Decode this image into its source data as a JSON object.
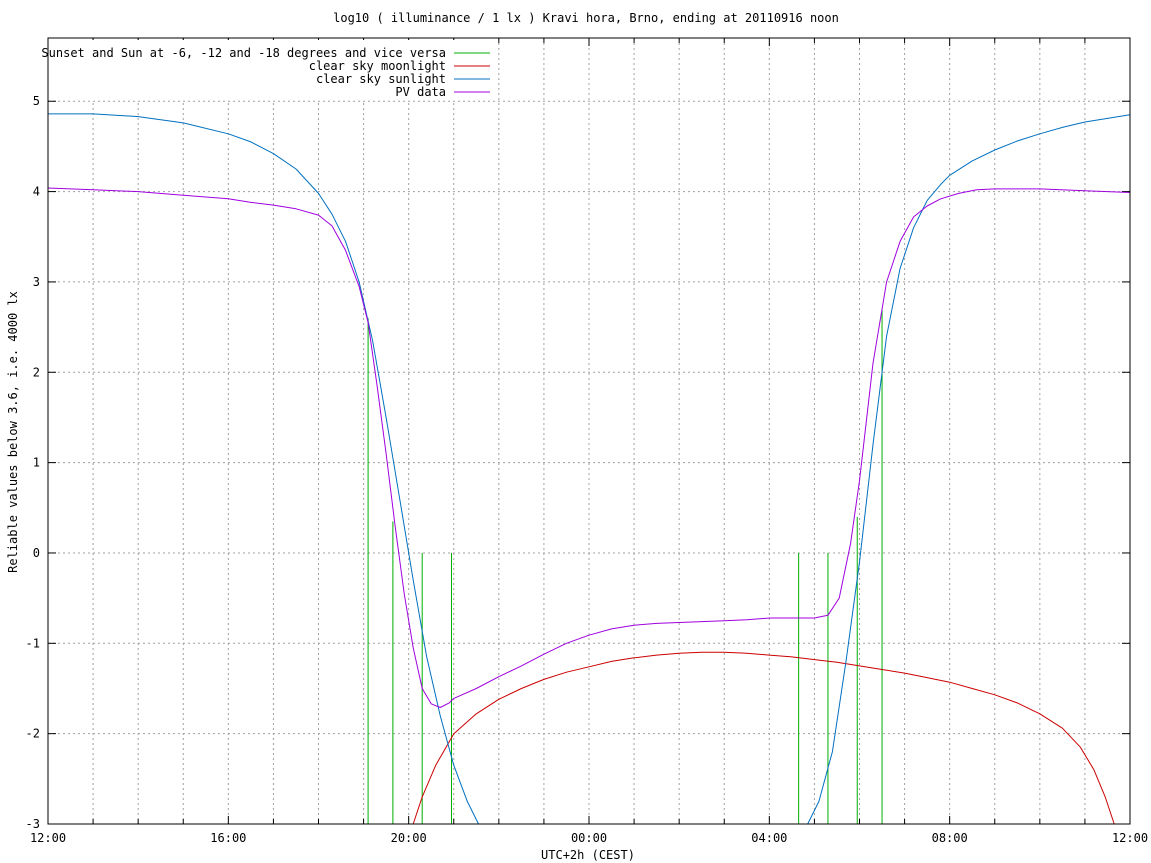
{
  "chart_data": {
    "type": "line",
    "title": "log10 ( illuminance / 1 lx ) Kravi hora, Brno, ending at 20110916 noon",
    "xlabel": "UTC+2h (CEST)",
    "ylabel": "Reliable values below 3.6, i.e. 4000 lx",
    "xlim": [
      0,
      24
    ],
    "ylim": [
      -3,
      5.7
    ],
    "x_ticks": [
      {
        "value": 0,
        "label": "12:00"
      },
      {
        "value": 4,
        "label": "16:00"
      },
      {
        "value": 8,
        "label": "20:00"
      },
      {
        "value": 12,
        "label": "00:00"
      },
      {
        "value": 16,
        "label": "04:00"
      },
      {
        "value": 20,
        "label": "08:00"
      },
      {
        "value": 24,
        "label": "12:00"
      }
    ],
    "y_ticks": [
      {
        "value": -3,
        "label": "-3"
      },
      {
        "value": -2,
        "label": "-2"
      },
      {
        "value": -1,
        "label": "-1"
      },
      {
        "value": 0,
        "label": "0"
      },
      {
        "value": 1,
        "label": "1"
      },
      {
        "value": 2,
        "label": "2"
      },
      {
        "value": 3,
        "label": "3"
      },
      {
        "value": 4,
        "label": "4"
      },
      {
        "value": 5,
        "label": "5"
      }
    ],
    "grid": true,
    "legend_position": "top-left",
    "series": [
      {
        "name": "Sunset and Sun at -6, -12 and -18 degrees and vice versa",
        "color": "#00b000",
        "kind": "impulses",
        "points": [
          [
            7.1,
            2.6
          ],
          [
            7.65,
            0.35
          ],
          [
            8.3,
            0
          ],
          [
            8.95,
            0
          ],
          [
            16.65,
            0
          ],
          [
            17.3,
            0
          ],
          [
            17.95,
            0.4
          ],
          [
            18.5,
            2.7
          ]
        ]
      },
      {
        "name": "clear sky moonlight",
        "color": "#cc0000",
        "kind": "line",
        "points": [
          [
            8.1,
            -3.0
          ],
          [
            8.3,
            -2.7
          ],
          [
            8.6,
            -2.35
          ],
          [
            9.0,
            -2.0
          ],
          [
            9.5,
            -1.78
          ],
          [
            10.0,
            -1.62
          ],
          [
            10.5,
            -1.5
          ],
          [
            11.0,
            -1.4
          ],
          [
            11.5,
            -1.32
          ],
          [
            12.0,
            -1.26
          ],
          [
            12.5,
            -1.2
          ],
          [
            13.0,
            -1.16
          ],
          [
            13.5,
            -1.13
          ],
          [
            14.0,
            -1.11
          ],
          [
            14.5,
            -1.1
          ],
          [
            15.0,
            -1.1
          ],
          [
            15.5,
            -1.11
          ],
          [
            16.0,
            -1.13
          ],
          [
            16.5,
            -1.15
          ],
          [
            17.0,
            -1.18
          ],
          [
            17.5,
            -1.21
          ],
          [
            18.0,
            -1.25
          ],
          [
            18.5,
            -1.29
          ],
          [
            19.0,
            -1.33
          ],
          [
            19.5,
            -1.38
          ],
          [
            20.0,
            -1.43
          ],
          [
            20.5,
            -1.5
          ],
          [
            21.0,
            -1.57
          ],
          [
            21.5,
            -1.66
          ],
          [
            22.0,
            -1.78
          ],
          [
            22.5,
            -1.94
          ],
          [
            22.9,
            -2.15
          ],
          [
            23.2,
            -2.4
          ],
          [
            23.45,
            -2.7
          ],
          [
            23.65,
            -3.0
          ]
        ]
      },
      {
        "name": "clear sky sunlight",
        "color": "#0070c0",
        "kind": "line",
        "points": [
          [
            0.0,
            4.86
          ],
          [
            1.0,
            4.86
          ],
          [
            2.0,
            4.83
          ],
          [
            3.0,
            4.76
          ],
          [
            4.0,
            4.64
          ],
          [
            4.5,
            4.55
          ],
          [
            5.0,
            4.42
          ],
          [
            5.5,
            4.25
          ],
          [
            6.0,
            3.98
          ],
          [
            6.3,
            3.75
          ],
          [
            6.6,
            3.45
          ],
          [
            6.9,
            3.0
          ],
          [
            7.2,
            2.35
          ],
          [
            7.5,
            1.5
          ],
          [
            7.8,
            0.6
          ],
          [
            8.1,
            -0.3
          ],
          [
            8.4,
            -1.15
          ],
          [
            8.7,
            -1.8
          ],
          [
            9.0,
            -2.35
          ],
          [
            9.3,
            -2.75
          ],
          [
            9.55,
            -3.0
          ],
          [
            16.85,
            -3.0
          ],
          [
            17.1,
            -2.75
          ],
          [
            17.4,
            -2.2
          ],
          [
            17.7,
            -1.2
          ],
          [
            18.0,
            -0.1
          ],
          [
            18.3,
            1.2
          ],
          [
            18.6,
            2.4
          ],
          [
            18.9,
            3.15
          ],
          [
            19.2,
            3.6
          ],
          [
            19.5,
            3.9
          ],
          [
            19.8,
            4.08
          ],
          [
            20.0,
            4.18
          ],
          [
            20.5,
            4.34
          ],
          [
            21.0,
            4.46
          ],
          [
            21.5,
            4.56
          ],
          [
            22.0,
            4.64
          ],
          [
            22.5,
            4.71
          ],
          [
            23.0,
            4.77
          ],
          [
            23.5,
            4.81
          ],
          [
            24.0,
            4.85
          ]
        ]
      },
      {
        "name": "PV data",
        "color": "#a000e0",
        "kind": "line",
        "points": [
          [
            0.0,
            4.04
          ],
          [
            1.0,
            4.02
          ],
          [
            2.0,
            4.0
          ],
          [
            3.0,
            3.96
          ],
          [
            4.0,
            3.92
          ],
          [
            4.5,
            3.88
          ],
          [
            5.0,
            3.85
          ],
          [
            5.5,
            3.81
          ],
          [
            6.0,
            3.74
          ],
          [
            6.3,
            3.62
          ],
          [
            6.6,
            3.35
          ],
          [
            6.9,
            2.95
          ],
          [
            7.1,
            2.55
          ],
          [
            7.3,
            1.85
          ],
          [
            7.5,
            1.1
          ],
          [
            7.7,
            0.3
          ],
          [
            7.9,
            -0.45
          ],
          [
            8.1,
            -1.05
          ],
          [
            8.3,
            -1.5
          ],
          [
            8.5,
            -1.67
          ],
          [
            8.7,
            -1.71
          ],
          [
            8.9,
            -1.66
          ],
          [
            9.0,
            -1.61
          ],
          [
            9.5,
            -1.5
          ],
          [
            10.0,
            -1.37
          ],
          [
            10.5,
            -1.25
          ],
          [
            11.0,
            -1.12
          ],
          [
            11.5,
            -1.0
          ],
          [
            12.0,
            -0.91
          ],
          [
            12.5,
            -0.84
          ],
          [
            13.0,
            -0.8
          ],
          [
            13.5,
            -0.78
          ],
          [
            14.0,
            -0.77
          ],
          [
            14.5,
            -0.76
          ],
          [
            15.0,
            -0.75
          ],
          [
            15.5,
            -0.74
          ],
          [
            16.0,
            -0.72
          ],
          [
            16.5,
            -0.72
          ],
          [
            17.0,
            -0.72
          ],
          [
            17.3,
            -0.69
          ],
          [
            17.55,
            -0.5
          ],
          [
            17.8,
            0.1
          ],
          [
            18.0,
            0.8
          ],
          [
            18.3,
            2.1
          ],
          [
            18.6,
            3.0
          ],
          [
            18.9,
            3.45
          ],
          [
            19.2,
            3.72
          ],
          [
            19.5,
            3.84
          ],
          [
            19.8,
            3.92
          ],
          [
            20.2,
            3.98
          ],
          [
            20.6,
            4.02
          ],
          [
            21.0,
            4.03
          ],
          [
            22.0,
            4.03
          ],
          [
            23.0,
            4.01
          ],
          [
            24.0,
            3.99
          ]
        ]
      }
    ]
  }
}
